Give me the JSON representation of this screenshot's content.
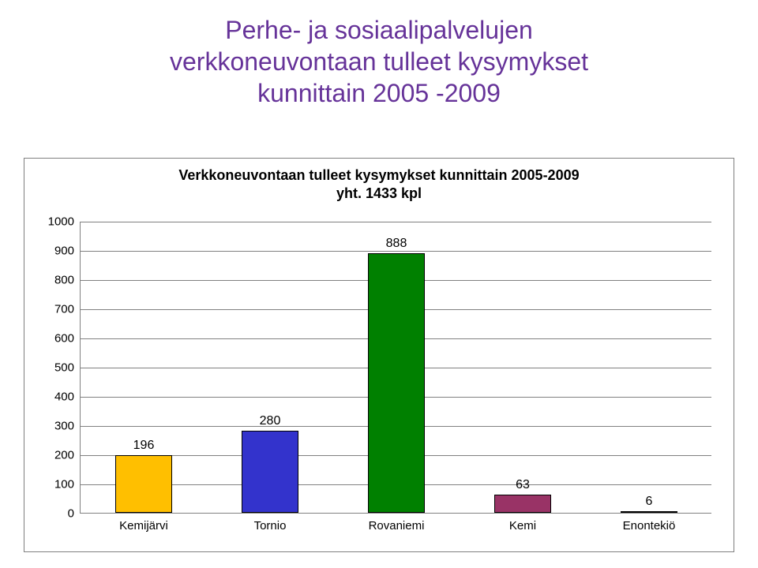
{
  "title": {
    "line1": "Perhe- ja sosiaalipalvelujen",
    "line2": "verkkoneuvontaan tulleet kysymykset",
    "line3": "kunnittain  2005 -2009",
    "color": "#663399",
    "fontsize": 32
  },
  "chart": {
    "type": "bar",
    "title_line1": "Verkkoneuvontaan tulleet kysymykset kunnittain 2005-2009",
    "title_line2": "yht. 1433 kpl",
    "title_fontsize": 18,
    "categories": [
      "Kemijärvi",
      "Tornio",
      "Rovaniemi",
      "Kemi",
      "Enontekiö"
    ],
    "values": [
      196,
      280,
      888,
      63,
      6
    ],
    "bar_colors": [
      "#ffbf00",
      "#3333cc",
      "#008000",
      "#993366",
      "#003366"
    ],
    "bar_border_color": "#000000",
    "ylim": [
      0,
      1000
    ],
    "ytick_step": 100,
    "grid_color": "#808080",
    "background_color": "#ffffff",
    "bar_width": 0.45,
    "tick_fontsize": 15,
    "value_label_fontsize": 16
  }
}
